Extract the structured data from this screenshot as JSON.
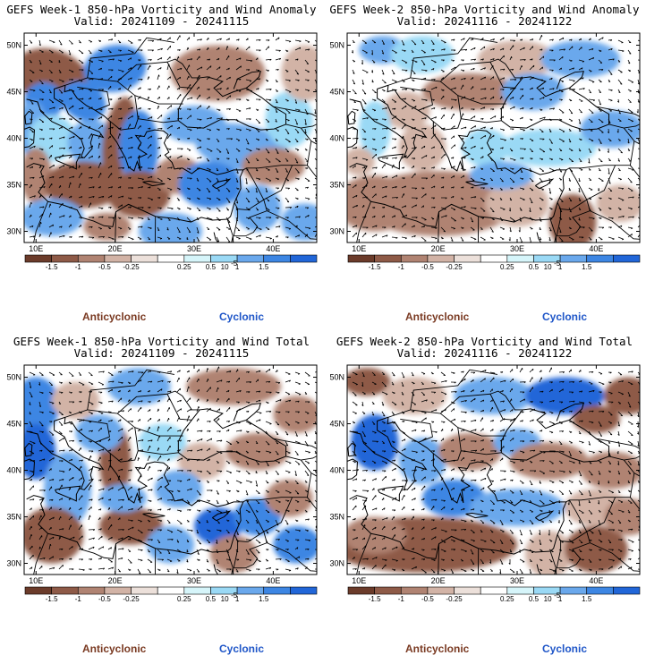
{
  "colorbar": {
    "colors": [
      "#6b3b2a",
      "#8e5a47",
      "#b08372",
      "#d2b3a6",
      "#ece0da",
      "#ffffff",
      "#d6f5fa",
      "#9ad9f5",
      "#6aa8ec",
      "#3d86e3",
      "#2166d8"
    ],
    "tick_labels": [
      "-1.5",
      "-1",
      "-0.5",
      "-0.25",
      "0.25",
      "0.5",
      "1",
      "1.5"
    ],
    "multiplier_label": "10",
    "multiplier_exponent": "-5"
  },
  "legend_labels": {
    "anticyclonic": "Anticyclonic",
    "cyclonic": "Cyclonic"
  },
  "axes": {
    "lat_labels": [
      "50N",
      "45N",
      "40N",
      "35N",
      "30N"
    ],
    "lon_labels": [
      "10E",
      "20E",
      "30E",
      "40E"
    ]
  },
  "panels": [
    {
      "title": "GEFS Week-1 850-hPa Vorticity and Wind Anomaly",
      "valid": "Valid: 20241109 - 20241115"
    },
    {
      "title": "GEFS Week-2 850-hPa Vorticity and Wind Anomaly",
      "valid": "Valid: 20241116 - 20241122"
    },
    {
      "title": "GEFS Week-1 850-hPa Vorticity and Wind Total",
      "valid": "Valid: 20241109 - 20241115"
    },
    {
      "title": "GEFS Week-2 850-hPa Vorticity and Wind Total",
      "valid": "Valid: 20241116 - 20241122"
    }
  ]
}
